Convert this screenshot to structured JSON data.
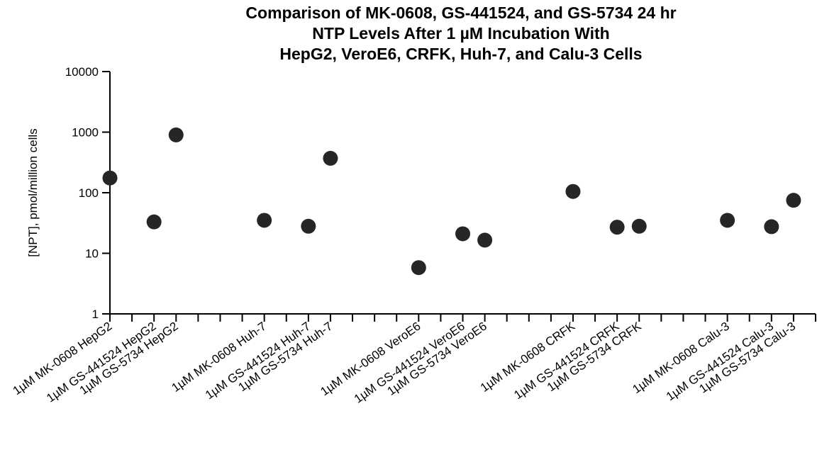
{
  "chart_data": {
    "type": "scatter",
    "title_lines": [
      "Comparison of MK-0608, GS-441524, and GS-5734 24 hr",
      "NTP Levels After 1 µM Incubation With",
      "HepG2, VeroE6, CRFK, Huh-7, and Calu-3 Cells"
    ],
    "xlabel": "",
    "ylabel": "[NPT], pmol/million cells",
    "yscale": "log",
    "ylim": [
      1,
      10000
    ],
    "yticks": [
      1,
      10,
      100,
      1000,
      10000
    ],
    "ytick_labels": [
      "1",
      "10",
      "100",
      "1000",
      "10000"
    ],
    "x_slot_count": 33,
    "categories": [
      "1µM MK-0608 HepG2",
      "1µM GS-441524 HepG2",
      "1µM GS-5734 HepG2",
      "1µM MK-0608 Huh-7",
      "1µM GS-441524 Huh-7",
      "1µM GS-5734 Huh-7",
      "1µM MK-0608 VeroE6",
      "1µM GS-441524 VeroE6",
      "1µM GS-5734 VeroE6",
      "1µM MK-0608 CRFK",
      "1µM GS-441524 CRFK",
      "1µM GS-5734 CRFK",
      "1µM MK-0608 Calu-3",
      "1µM GS-441524 Calu-3",
      "1µM GS-5734 Calu-3"
    ],
    "category_slots": [
      0,
      2,
      3,
      7,
      9,
      10,
      14,
      16,
      17,
      21,
      23,
      24,
      28,
      30,
      31
    ],
    "values": [
      175,
      33,
      900,
      35,
      28,
      370,
      5.8,
      21,
      16.5,
      105,
      27,
      28,
      35,
      27.5,
      75
    ],
    "grid": false,
    "legend": "none",
    "marker_color": "#262626",
    "axis_color": "#000000"
  }
}
